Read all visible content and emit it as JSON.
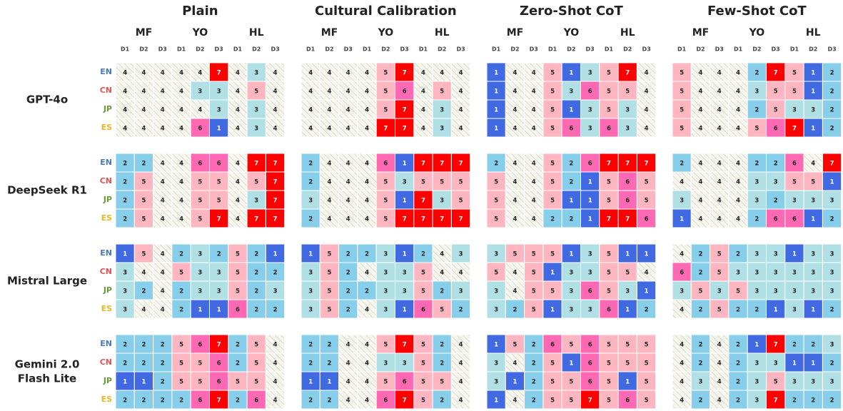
{
  "chart_data": {
    "type": "heatmap",
    "methods": [
      "Plain",
      "Cultural Calibration",
      "Zero-Shot CoT",
      "Few-Shot CoT"
    ],
    "groups": [
      "MF",
      "YO",
      "HL"
    ],
    "columns": [
      "D1",
      "D2",
      "D3",
      "D1",
      "D2",
      "D3",
      "D1",
      "D2",
      "D3"
    ],
    "languages": [
      "EN",
      "CN",
      "JP",
      "ES"
    ],
    "language_colors": [
      "#4a7bb7",
      "#e05555",
      "#6a9a3c",
      "#e8b923"
    ],
    "models": [
      [
        "GPT-4o"
      ],
      [
        "DeepSeek R1"
      ],
      [
        "Mistral Large"
      ],
      [
        "Gemini 2.0",
        "Flash Lite"
      ]
    ],
    "palette": {
      "1": "#4169e1",
      "2": "#87ceeb",
      "3": "#b0e0e6",
      "4": "hatch",
      "5": "#ffb6c1",
      "6": "#ff69b4",
      "7": "#ff0000"
    },
    "light_text_values": [
      1,
      7
    ],
    "values": [
      [
        [
          [
            4,
            4,
            4,
            4,
            4,
            7,
            4,
            3,
            4
          ],
          [
            4,
            4,
            4,
            4,
            3,
            3,
            4,
            5,
            4
          ],
          [
            4,
            4,
            4,
            4,
            4,
            3,
            4,
            3,
            4
          ],
          [
            4,
            4,
            4,
            4,
            6,
            1,
            4,
            3,
            4
          ]
        ],
        [
          [
            4,
            4,
            4,
            4,
            5,
            7,
            4,
            4,
            4
          ],
          [
            4,
            4,
            4,
            4,
            5,
            6,
            4,
            5,
            4
          ],
          [
            4,
            4,
            4,
            4,
            5,
            7,
            4,
            3,
            4
          ],
          [
            4,
            4,
            4,
            4,
            7,
            7,
            4,
            3,
            4
          ]
        ],
        [
          [
            1,
            4,
            4,
            5,
            1,
            3,
            5,
            7,
            4
          ],
          [
            1,
            4,
            4,
            5,
            3,
            6,
            5,
            5,
            4
          ],
          [
            1,
            4,
            4,
            5,
            1,
            3,
            5,
            3,
            4
          ],
          [
            1,
            4,
            4,
            5,
            6,
            3,
            6,
            3,
            4
          ]
        ],
        [
          [
            5,
            4,
            4,
            4,
            2,
            7,
            5,
            1,
            2
          ],
          [
            5,
            4,
            4,
            4,
            3,
            5,
            5,
            1,
            2
          ],
          [
            5,
            4,
            4,
            4,
            2,
            5,
            3,
            3,
            2
          ],
          [
            5,
            4,
            4,
            4,
            5,
            6,
            7,
            1,
            2
          ]
        ]
      ],
      [
        [
          [
            2,
            2,
            4,
            4,
            6,
            6,
            4,
            7,
            7
          ],
          [
            2,
            5,
            4,
            4,
            5,
            5,
            4,
            5,
            7
          ],
          [
            2,
            5,
            4,
            4,
            5,
            5,
            4,
            3,
            7
          ],
          [
            2,
            5,
            4,
            4,
            5,
            7,
            4,
            7,
            7
          ]
        ],
        [
          [
            2,
            4,
            4,
            4,
            6,
            1,
            7,
            7,
            7
          ],
          [
            2,
            4,
            4,
            4,
            5,
            3,
            5,
            5,
            5
          ],
          [
            3,
            4,
            4,
            4,
            5,
            1,
            7,
            3,
            5
          ],
          [
            2,
            4,
            4,
            4,
            5,
            7,
            7,
            7,
            7
          ]
        ],
        [
          [
            2,
            4,
            4,
            5,
            2,
            6,
            7,
            7,
            7
          ],
          [
            5,
            4,
            4,
            5,
            2,
            1,
            5,
            6,
            5
          ],
          [
            5,
            4,
            4,
            5,
            1,
            1,
            5,
            6,
            5
          ],
          [
            5,
            4,
            4,
            2,
            2,
            1,
            7,
            7,
            6
          ]
        ],
        [
          [
            2,
            4,
            4,
            4,
            2,
            2,
            6,
            4,
            7
          ],
          [
            4,
            4,
            4,
            4,
            3,
            3,
            5,
            5,
            1
          ],
          [
            3,
            4,
            4,
            4,
            3,
            2,
            3,
            3,
            3
          ],
          [
            1,
            4,
            4,
            4,
            2,
            6,
            6,
            1,
            2
          ]
        ]
      ],
      [
        [
          [
            1,
            5,
            4,
            2,
            3,
            2,
            5,
            2,
            1
          ],
          [
            3,
            4,
            4,
            5,
            3,
            3,
            5,
            2,
            2
          ],
          [
            3,
            2,
            4,
            2,
            3,
            3,
            5,
            2,
            3
          ],
          [
            3,
            4,
            4,
            2,
            1,
            1,
            6,
            2,
            2
          ]
        ],
        [
          [
            1,
            5,
            2,
            2,
            3,
            1,
            2,
            4,
            3
          ],
          [
            3,
            5,
            2,
            4,
            3,
            3,
            5,
            4,
            4
          ],
          [
            3,
            5,
            2,
            2,
            3,
            3,
            5,
            2,
            3
          ],
          [
            3,
            5,
            2,
            4,
            3,
            1,
            6,
            5,
            2
          ]
        ],
        [
          [
            3,
            5,
            5,
            5,
            1,
            3,
            5,
            1,
            1
          ],
          [
            5,
            4,
            5,
            1,
            3,
            3,
            5,
            5,
            4
          ],
          [
            3,
            4,
            5,
            5,
            3,
            6,
            5,
            3,
            1
          ],
          [
            3,
            2,
            5,
            1,
            3,
            3,
            6,
            1,
            2
          ]
        ],
        [
          [
            4,
            2,
            5,
            2,
            3,
            3,
            1,
            3,
            3
          ],
          [
            6,
            2,
            5,
            3,
            3,
            3,
            3,
            3,
            3
          ],
          [
            3,
            5,
            3,
            5,
            3,
            3,
            3,
            3,
            3
          ],
          [
            4,
            2,
            5,
            2,
            2,
            1,
            3,
            1,
            2
          ]
        ]
      ],
      [
        [
          [
            2,
            2,
            2,
            5,
            6,
            7,
            2,
            5,
            4
          ],
          [
            2,
            2,
            2,
            5,
            5,
            6,
            2,
            5,
            4
          ],
          [
            1,
            1,
            2,
            5,
            5,
            6,
            5,
            5,
            4
          ],
          [
            2,
            2,
            2,
            2,
            6,
            7,
            2,
            6,
            4
          ]
        ],
        [
          [
            2,
            2,
            4,
            4,
            5,
            7,
            5,
            2,
            4
          ],
          [
            2,
            2,
            4,
            4,
            3,
            3,
            5,
            2,
            4
          ],
          [
            1,
            1,
            4,
            4,
            5,
            6,
            5,
            5,
            4
          ],
          [
            2,
            2,
            4,
            4,
            6,
            7,
            5,
            2,
            4
          ]
        ],
        [
          [
            1,
            5,
            2,
            6,
            5,
            6,
            5,
            5,
            5
          ],
          [
            3,
            4,
            2,
            5,
            1,
            6,
            5,
            5,
            5
          ],
          [
            3,
            1,
            2,
            5,
            5,
            6,
            5,
            1,
            5
          ],
          [
            1,
            4,
            2,
            5,
            5,
            7,
            5,
            6,
            5
          ]
        ],
        [
          [
            4,
            2,
            4,
            2,
            1,
            7,
            2,
            2,
            3
          ],
          [
            4,
            2,
            4,
            2,
            3,
            3,
            1,
            1,
            2
          ],
          [
            4,
            3,
            4,
            2,
            3,
            5,
            3,
            3,
            3
          ],
          [
            4,
            2,
            4,
            2,
            3,
            7,
            2,
            2,
            2
          ]
        ]
      ]
    ]
  }
}
